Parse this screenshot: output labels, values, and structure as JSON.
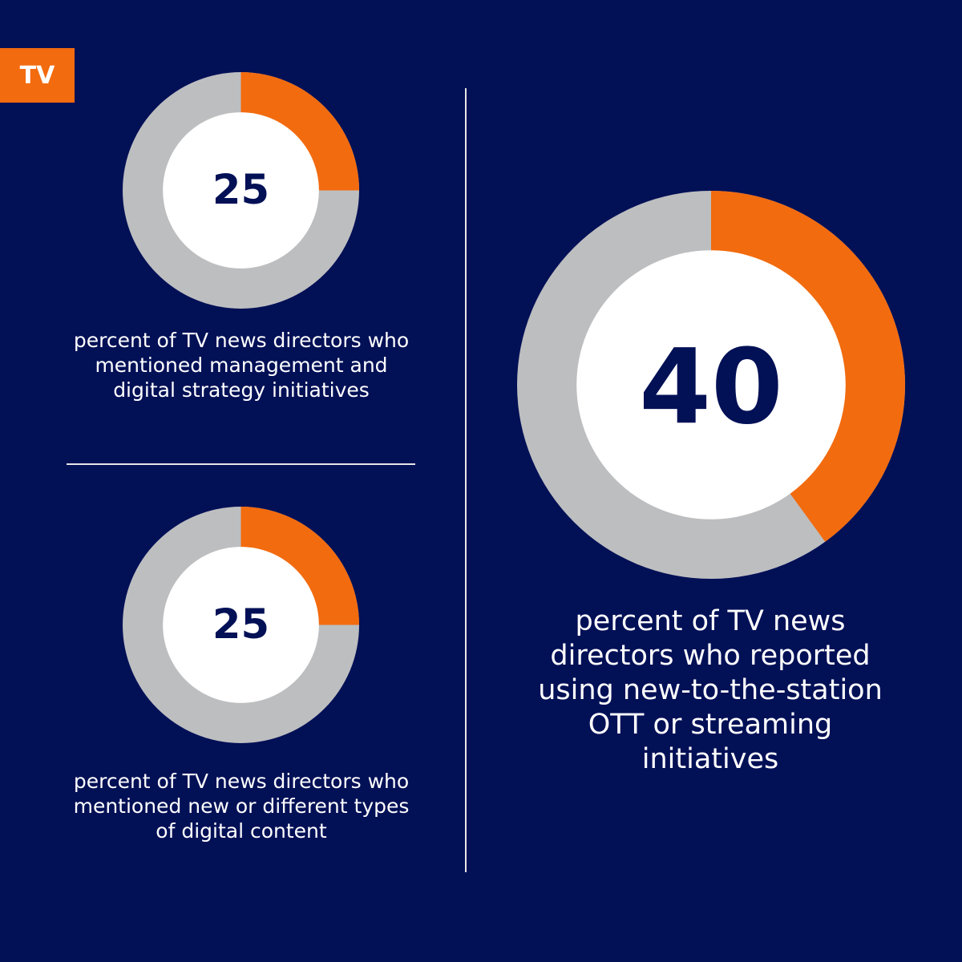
{
  "header": {
    "tag": "TV"
  },
  "colors": {
    "background": "#021056",
    "accent": "#f26b0f",
    "ring": "#bdbec0",
    "center": "#ffffff",
    "number": "#021056"
  },
  "chart_data": [
    {
      "type": "pie",
      "value": 25,
      "label": "25",
      "caption": "percent of TV news directors who mentioned management and digital strategy initiatives"
    },
    {
      "type": "pie",
      "value": 25,
      "label": "25",
      "caption": "percent of TV news directors who mentioned new or different types of digital content"
    },
    {
      "type": "pie",
      "value": 40,
      "label": "40",
      "caption": "percent of TV news directors who reported using new-to-the-station OTT or streaming initiatives"
    }
  ]
}
